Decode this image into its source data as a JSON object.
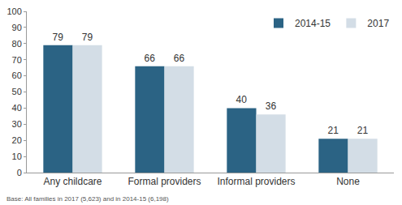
{
  "chart_data": {
    "type": "bar",
    "categories": [
      "Any childcare",
      "Formal providers",
      "Informal providers",
      "None"
    ],
    "series": [
      {
        "name": "2014-15",
        "color": "#2b6384",
        "values": [
          79,
          66,
          40,
          21
        ]
      },
      {
        "name": "2017",
        "color": "#d3dde6",
        "values": [
          79,
          66,
          36,
          21
        ]
      }
    ],
    "ylim": [
      0,
      100
    ],
    "yticks": [
      0,
      10,
      20,
      30,
      40,
      50,
      60,
      70,
      80,
      90,
      100
    ],
    "grid": false,
    "legend": "top right",
    "data_labels": true,
    "annotations": [
      "Base: All families in 2017 (5,623) and in 2014-15 (6,198)"
    ]
  }
}
